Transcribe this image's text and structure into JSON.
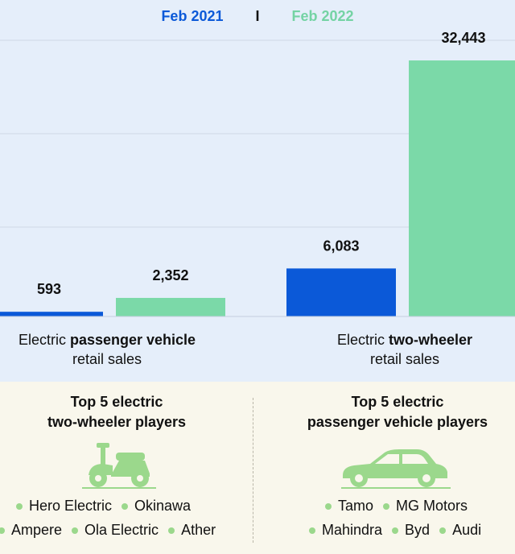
{
  "legend": {
    "series_a": "Feb 2021",
    "separator": "I",
    "series_b": "Feb 2022"
  },
  "colors": {
    "series_a": "#0b59d8",
    "series_b": "#7bd9a8",
    "background": "#e5eefa",
    "panel": "#f9f7ec",
    "grid": "#cfd8e6"
  },
  "chart_data": {
    "type": "bar",
    "categories": [
      "Electric passenger vehicle retail sales",
      "Electric two-wheeler retail sales"
    ],
    "series": [
      {
        "name": "Feb 2021",
        "values": [
          593,
          6083
        ]
      },
      {
        "name": "Feb 2022",
        "values": [
          2352,
          32443
        ]
      }
    ],
    "value_labels": [
      [
        "593",
        "6,083"
      ],
      [
        "2,352",
        "32,443"
      ]
    ],
    "ylim": [
      0,
      35000
    ],
    "grid": true
  },
  "categories_text": [
    {
      "prefix": "Electric ",
      "bold": "passenger vehicle",
      "suffix": "retail sales"
    },
    {
      "prefix": "Electric ",
      "bold": "two-wheeler",
      "suffix": "retail sales"
    }
  ],
  "panels": {
    "left": {
      "title_line1": "Top 5 electric",
      "title_line2": "two-wheeler players",
      "icon": "scooter-icon",
      "row1": [
        "Hero Electric",
        "Okinawa"
      ],
      "row2": [
        "Ampere",
        "Ola Electric",
        "Ather"
      ]
    },
    "right": {
      "title_line1": "Top 5 electric",
      "title_line2": "passenger vehicle players",
      "icon": "car-icon",
      "row1": [
        "Tamo",
        "MG Motors"
      ],
      "row2": [
        "Mahindra",
        "Byd",
        "Audi"
      ]
    }
  }
}
